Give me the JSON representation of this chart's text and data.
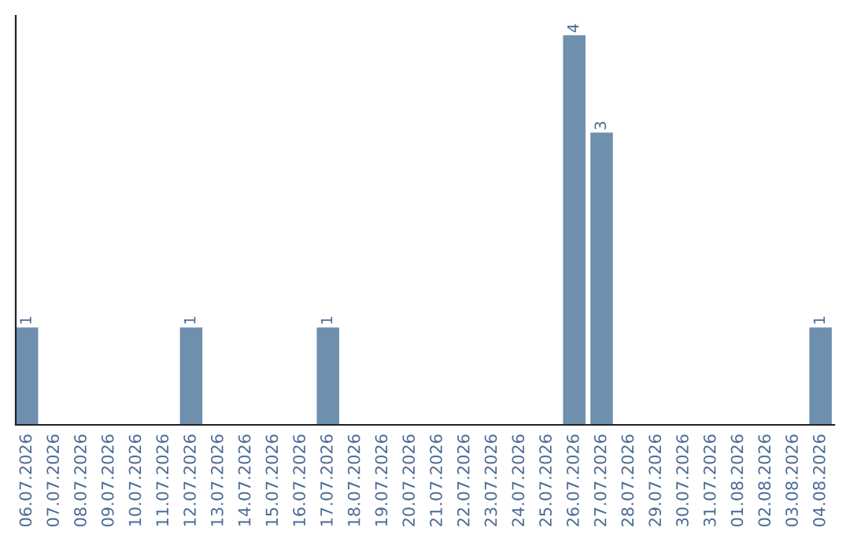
{
  "chart_data": {
    "type": "bar",
    "categories": [
      "06.07.2026",
      "07.07.2026",
      "08.07.2026",
      "09.07.2026",
      "10.07.2026",
      "11.07.2026",
      "12.07.2026",
      "13.07.2026",
      "14.07.2026",
      "15.07.2026",
      "16.07.2026",
      "17.07.2026",
      "18.07.2026",
      "19.07.2026",
      "20.07.2026",
      "21.07.2026",
      "22.07.2026",
      "23.07.2026",
      "24.07.2026",
      "25.07.2026",
      "26.07.2026",
      "27.07.2026",
      "28.07.2026",
      "29.07.2026",
      "30.07.2026",
      "31.07.2026",
      "01.08.2026",
      "02.08.2026",
      "03.08.2026",
      "04.08.2026"
    ],
    "values": [
      1,
      0,
      0,
      0,
      0,
      0,
      1,
      0,
      0,
      0,
      0,
      1,
      0,
      0,
      0,
      0,
      0,
      0,
      0,
      0,
      4,
      3,
      0,
      0,
      0,
      0,
      0,
      0,
      0,
      1
    ],
    "value_labels": [
      "1",
      null,
      null,
      null,
      null,
      null,
      "1",
      null,
      null,
      null,
      null,
      "1",
      null,
      null,
      null,
      null,
      null,
      null,
      null,
      null,
      "4",
      "3",
      null,
      null,
      null,
      null,
      null,
      null,
      null,
      "1"
    ],
    "color": "#6f8faf",
    "tick_labels": "x",
    "grid": false
  }
}
